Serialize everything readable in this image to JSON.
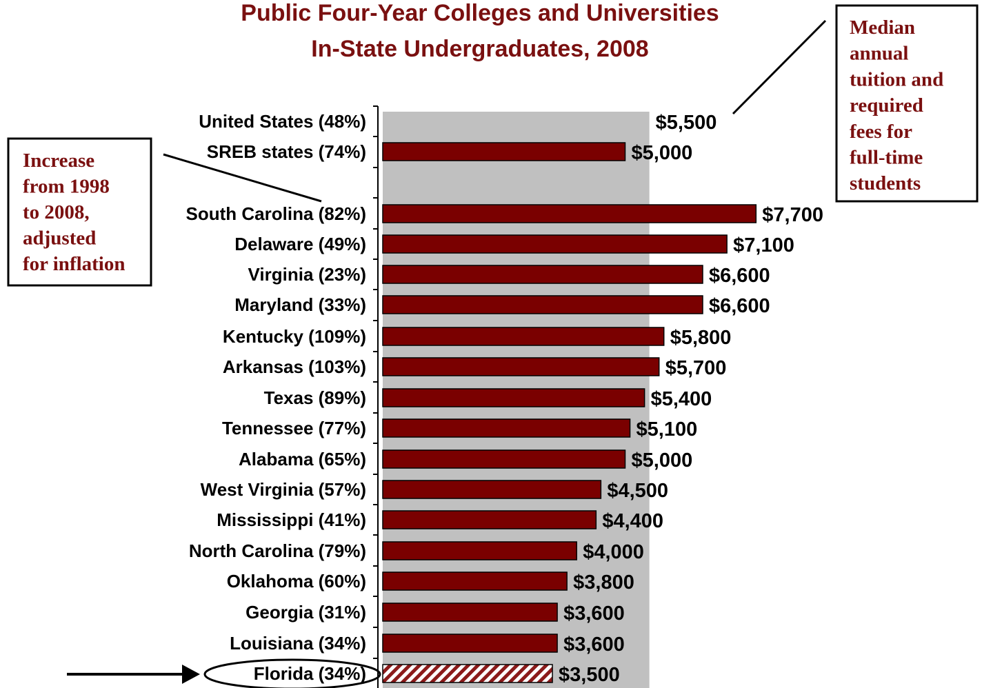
{
  "chart_data": {
    "type": "bar",
    "orientation": "horizontal",
    "title": [
      "Public Four-Year Colleges and Universities",
      "In-State Undergraduates, 2008"
    ],
    "xlim": [
      0,
      9000
    ],
    "reference_band_value": 5500,
    "categories": [
      {
        "label": "United States (48%)",
        "value": 5500,
        "value_label": "$5,500",
        "bar": false
      },
      {
        "label": "SREB states (74%)",
        "value": 5000,
        "value_label": "$5,000",
        "bar": true
      },
      {
        "label": "South Carolina (82%)",
        "value": 7700,
        "value_label": "$7,700",
        "bar": true
      },
      {
        "label": "Delaware (49%)",
        "value": 7100,
        "value_label": "$7,100",
        "bar": true
      },
      {
        "label": "Virginia (23%)",
        "value": 6600,
        "value_label": "$6,600",
        "bar": true
      },
      {
        "label": "Maryland (33%)",
        "value": 6600,
        "value_label": "$6,600",
        "bar": true
      },
      {
        "label": "Kentucky (109%)",
        "value": 5800,
        "value_label": "$5,800",
        "bar": true
      },
      {
        "label": "Arkansas (103%)",
        "value": 5700,
        "value_label": "$5,700",
        "bar": true
      },
      {
        "label": "Texas (89%)",
        "value": 5400,
        "value_label": "$5,400",
        "bar": true
      },
      {
        "label": "Tennessee (77%)",
        "value": 5100,
        "value_label": "$5,100",
        "bar": true
      },
      {
        "label": "Alabama (65%)",
        "value": 5000,
        "value_label": "$5,000",
        "bar": true
      },
      {
        "label": "West Virginia (57%)",
        "value": 4500,
        "value_label": "$4,500",
        "bar": true
      },
      {
        "label": "Mississippi (41%)",
        "value": 4400,
        "value_label": "$4,400",
        "bar": true
      },
      {
        "label": "North Carolina (79%)",
        "value": 4000,
        "value_label": "$4,000",
        "bar": true
      },
      {
        "label": "Oklahoma (60%)",
        "value": 3800,
        "value_label": "$3,800",
        "bar": true
      },
      {
        "label": "Georgia (31%)",
        "value": 3600,
        "value_label": "$3,600",
        "bar": true
      },
      {
        "label": "Louisiana (34%)",
        "value": 3600,
        "value_label": "$3,600",
        "bar": true
      },
      {
        "label": "Florida (34%)",
        "value": 3500,
        "value_label": "$3,500",
        "bar": true,
        "highlight": true
      }
    ],
    "annotations": {
      "right_box": [
        "Median",
        "annual",
        "tuition and",
        "required",
        "fees for",
        "full-time",
        "students"
      ],
      "left_box": [
        "Increase",
        "from 1998",
        "to 2008,",
        "adjusted",
        "for inflation"
      ]
    },
    "colors": {
      "bar": "#7a0000",
      "band": "#c0c0c0",
      "title": "#7a1010",
      "highlight_hatch": "#8b1a1a"
    }
  }
}
